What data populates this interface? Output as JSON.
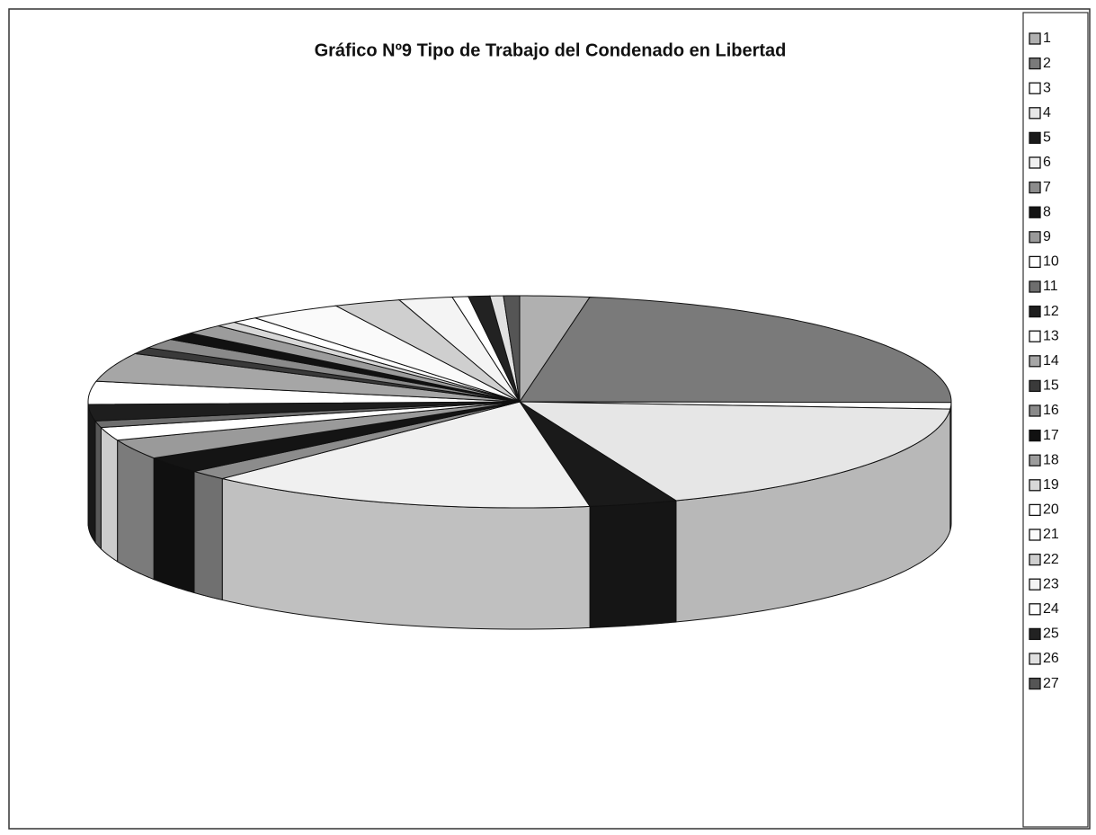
{
  "chart_data": {
    "type": "pie3d",
    "title": "Gráfico Nº9 Tipo de Trabajo del Condenado en Libertad",
    "categories": [
      "1",
      "2",
      "3",
      "4",
      "5",
      "6",
      "7",
      "8",
      "9",
      "10",
      "11",
      "12",
      "13",
      "14",
      "15",
      "16",
      "17",
      "18",
      "19",
      "20",
      "21",
      "22",
      "23",
      "24",
      "25",
      "26",
      "27"
    ],
    "values": [
      2.6,
      22.5,
      1,
      18,
      3.3,
      14.7,
      1.5,
      2.5,
      3,
      2,
      1,
      2.5,
      3.5,
      4.4,
      1,
      1.5,
      1.2,
      1.5,
      0.8,
      1,
      3.5,
      2.5,
      2,
      0.6,
      0.8,
      0.5,
      0.6
    ],
    "colors": [
      "#b0b0b0",
      "#7a7a7a",
      "#ffffff",
      "#e6e6e6",
      "#1a1a1a",
      "#f0f0f0",
      "#8c8c8c",
      "#141414",
      "#9a9a9a",
      "#ffffff",
      "#6e6e6e",
      "#1e1e1e",
      "#ffffff",
      "#a6a6a6",
      "#3a3a3a",
      "#8a8a8a",
      "#111111",
      "#9c9c9c",
      "#d8d8d8",
      "#ffffff",
      "#fafafa",
      "#cfcfcf",
      "#f4f4f4",
      "#ffffff",
      "#222222",
      "#e0e0e0",
      "#555555"
    ],
    "legend": "right"
  }
}
